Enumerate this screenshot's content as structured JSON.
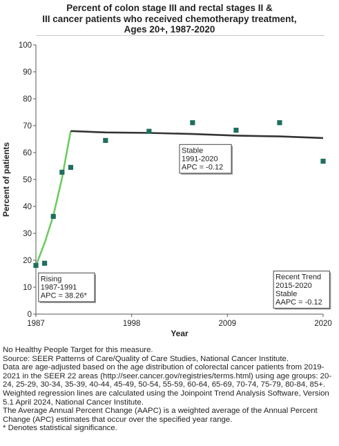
{
  "chart_data": {
    "type": "scatter",
    "title": [
      "Percent of colon stage III and rectal stages II &",
      "III cancer patients who received chemotherapy treatment,",
      "Ages 20+,  1987-2020"
    ],
    "xlabel": "Year",
    "ylabel": "Percent of patients",
    "xlim": [
      1987,
      2020
    ],
    "ylim": [
      0,
      100
    ],
    "x_ticks": [
      1987,
      1998,
      2009,
      2020
    ],
    "y_ticks": [
      0,
      10,
      20,
      30,
      40,
      50,
      60,
      70,
      80,
      90,
      100
    ],
    "grid": false,
    "series": [
      {
        "kind": "observed",
        "color": "#1f6e5f",
        "x": [
          1987,
          1988,
          1989,
          1990,
          1991,
          1995,
          2000,
          2005,
          2010,
          2015,
          2020
        ],
        "y": [
          18.1,
          18.9,
          36.3,
          52.7,
          54.5,
          64.5,
          67.9,
          71.1,
          68.3,
          71.1,
          56.8
        ]
      },
      {
        "kind": "trend-rising",
        "color": "#6ccb5f",
        "x": [
          1987,
          1988,
          1989,
          1990,
          1991
        ],
        "y": [
          18.0,
          26.4,
          36.5,
          50.5,
          68.0
        ]
      },
      {
        "kind": "trend-stable",
        "color": "#333333",
        "x": [
          1991,
          1995,
          2000,
          2005,
          2010,
          2015,
          2020
        ],
        "y": [
          68.0,
          67.5,
          67.3,
          66.9,
          66.3,
          66.0,
          65.4
        ]
      }
    ],
    "annotations": [
      {
        "lines": [
          "Rising",
          "1987-1991",
          "APC = 38.26*"
        ],
        "x": 1987.3,
        "y": 15.3
      },
      {
        "lines": [
          "Stable",
          "1991-2020",
          "APC = -0.12"
        ],
        "x": 2003.5,
        "y": 63.0
      },
      {
        "lines": [
          "Recent Trend",
          "2015-2020",
          "Stable",
          "AAPC = -0.12"
        ],
        "x": 2014.3,
        "y": 16.0
      }
    ]
  },
  "notes": [
    "No Healthy People Target for this measure.",
    "Source: SEER Patterns of Care/Quality of Care Studies, National Cancer Institute.",
    "Data are age-adjusted based on the age distribution of colorectal cancer patients from 2019-2021 in the SEER 22 areas (http://seer.cancer.gov/registries/terms.html) using age groups: 20-24, 25-29, 30-34, 35-39, 40-44, 45-49, 50-54, 55-59, 60-64, 65-69, 70-74, 75-79, 80-84, 85+.",
    "Weighted regression lines are calculated using the Joinpoint Trend Analysis Software, Version 5.1 April 2024, National Cancer Institute.",
    "The Average Annual Percent Change (AAPC) is a weighted average of the Annual Percent Change (APC) estimates that occur over the specified year range.",
    "* Denotes statistical significance."
  ]
}
